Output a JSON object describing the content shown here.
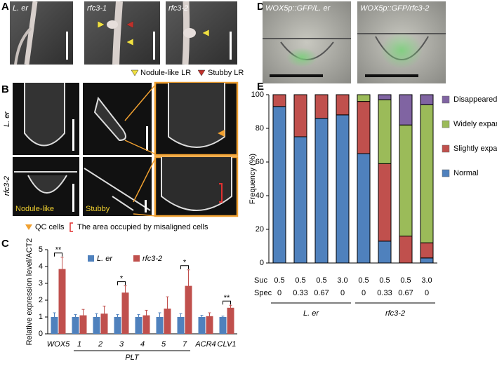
{
  "panels": {
    "letters": [
      "A",
      "B",
      "C",
      "D",
      "E"
    ],
    "a": {
      "images": [
        "L. er",
        "rfc3-1",
        "rfc3-2"
      ],
      "legend": [
        "Nodule-like LR",
        "Stubby LR"
      ]
    },
    "b": {
      "rows": [
        "L. er",
        "rfc3-2"
      ],
      "image_labels": [
        "Nodule-like",
        "Stubby"
      ],
      "legend": [
        "QC cells",
        "The area occupied by misaligned cells"
      ]
    },
    "d": {
      "images": [
        "WOX5p::GFP/L. er",
        "WOX5p::GFP/rfc3-2"
      ]
    }
  },
  "chart_data": [
    {
      "type": "bar",
      "ylabel": "Relative expression level/ACT2",
      "categories": [
        "WOX5",
        "1",
        "2",
        "3",
        "4",
        "5",
        "7",
        "ACR4",
        "CLV1"
      ],
      "category_groups": [
        {
          "label": "PLT",
          "first": "1",
          "last": "7"
        }
      ],
      "series": [
        {
          "name": "L. er",
          "color": "#4f81bd",
          "values": [
            1,
            1,
            1,
            1,
            1,
            1,
            1,
            1,
            1
          ],
          "errors": [
            0.25,
            0.15,
            0.2,
            0.15,
            0.15,
            0.25,
            0.2,
            0.1,
            0.05
          ]
        },
        {
          "name": "rfc3-2",
          "color": "#c0504d",
          "values": [
            3.85,
            1.1,
            1.2,
            2.45,
            1.1,
            1.5,
            2.85,
            1.05,
            1.55
          ],
          "errors": [
            0.7,
            0.35,
            0.45,
            0.4,
            0.3,
            0.7,
            0.95,
            0.2,
            0.15
          ]
        }
      ],
      "annotations": [
        {
          "label": "**",
          "category": "WOX5"
        },
        {
          "label": "*",
          "category": "3"
        },
        {
          "label": "*",
          "category": "7"
        },
        {
          "label": "**",
          "category": "CLV1"
        }
      ],
      "ylim": [
        0,
        5
      ],
      "yticks": [
        0,
        1,
        2,
        3,
        4,
        5
      ],
      "grid": false
    },
    {
      "type": "stacked_bar",
      "ylabel": "Frequency (%)",
      "row_labels": [
        "Suc",
        "Spec"
      ],
      "column_groups": [
        {
          "name": "L. er",
          "suc": [
            "0.5",
            "0.5",
            "0.5",
            "3.0"
          ],
          "spec": [
            "0",
            "0.33",
            "0.67",
            "0"
          ]
        },
        {
          "name": "rfc3-2",
          "suc": [
            "0.5",
            "0.5",
            "0.5",
            "3.0"
          ],
          "spec": [
            "0",
            "0.33",
            "0.67",
            "0"
          ]
        }
      ],
      "series": [
        {
          "name": "Normal",
          "color": "#4f81bd",
          "values": [
            93,
            75,
            86,
            88,
            65,
            13,
            0,
            3
          ]
        },
        {
          "name": "Slightly expanded",
          "color": "#c0504d",
          "values": [
            7,
            25,
            14,
            12,
            31,
            46,
            16,
            9
          ]
        },
        {
          "name": "Widely expanded",
          "color": "#9bbb59",
          "values": [
            0,
            0,
            0,
            0,
            4,
            38,
            66,
            82
          ]
        },
        {
          "name": "Disappeared",
          "color": "#8064a2",
          "values": [
            0,
            0,
            0,
            0,
            0,
            3,
            18,
            6
          ]
        }
      ],
      "ylim": [
        0,
        100
      ],
      "yticks": [
        0,
        20,
        40,
        60,
        80,
        100
      ],
      "grid": false
    }
  ]
}
